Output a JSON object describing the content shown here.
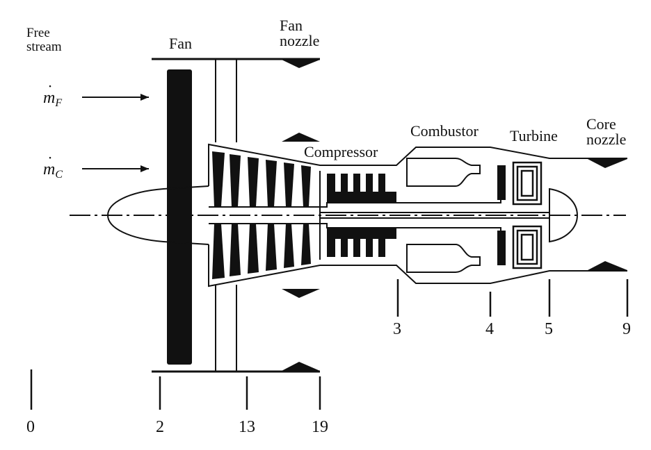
{
  "labels": {
    "free_stream": "Free\nstream",
    "fan": "Fan",
    "fan_nozzle": "Fan\nnozzle",
    "compressor": "Compressor",
    "combustor": "Combustor",
    "turbine": "Turbine",
    "core_nozzle": "Core\nnozzle"
  },
  "flows": {
    "fan_flow": {
      "symbol": "m",
      "subscript": "F"
    },
    "core_flow": {
      "symbol": "m",
      "subscript": "C"
    }
  },
  "stations": [
    "0",
    "2",
    "13",
    "19",
    "3",
    "4",
    "5",
    "9"
  ],
  "colors": {
    "ink": "#111111",
    "background": "#ffffff"
  }
}
